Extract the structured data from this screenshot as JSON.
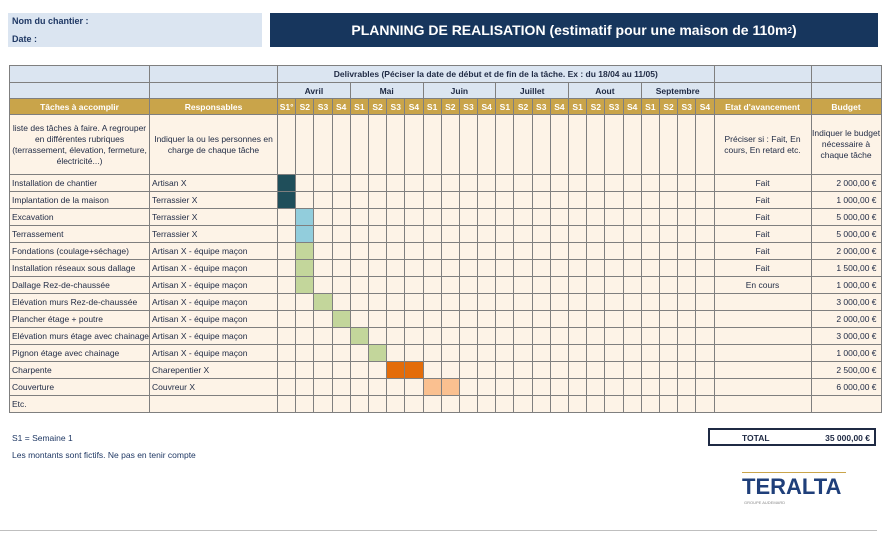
{
  "header": {
    "nom_label": "Nom du chantier :",
    "date_label": "Date :",
    "title": "PLANNING DE REALISATION (estimatif pour une maison de 110m",
    "title_sup": "2",
    "title_end": ")"
  },
  "table": {
    "delivrables": "Delivrables (Péciser la date de début et de fin de la tâche. Ex : du 18/04 au 11/05)",
    "months": [
      "Avril",
      "Mai",
      "Juin",
      "Juillet",
      "Aout",
      "Septembre"
    ],
    "weeks": [
      "S1°",
      "S2",
      "S3",
      "S4",
      "S1",
      "S2",
      "S3",
      "S4",
      "S1",
      "S2",
      "S3",
      "S4",
      "S1",
      "S2",
      "S3",
      "S4",
      "S1",
      "S2",
      "S3",
      "S4",
      "S1",
      "S2",
      "S3",
      "S4"
    ],
    "col_tasks": "Tâches à accomplir",
    "col_resp": "Responsables",
    "col_etat": "Etat d'avancement",
    "col_budget": "Budget",
    "help_tasks": "liste des tâches à faire.  A regrouper en différentes rubriques (terrassement, élevation, fermeture, électricité...)",
    "help_resp": "Indiquer la ou les personnes en charge de  chaque tâche",
    "help_etat": "Préciser si : Fait, En cours, En retard etc.",
    "help_budget": "Indiquer le budget nécessaire à chaque tâche",
    "rows": [
      {
        "task": "Installation de chantier",
        "resp": "Artisan X",
        "etat": "Fait",
        "budget": "2 000,00 €",
        "cells": [
          0
        ]
      },
      {
        "task": "Implantation de la maison",
        "resp": "Terrassier X",
        "etat": "Fait",
        "budget": "1 000,00 €",
        "cells": [
          0
        ]
      },
      {
        "task": "Excavation",
        "resp": "Terrassier X",
        "etat": "Fait",
        "budget": "5 000,00 €",
        "cells": [
          1
        ]
      },
      {
        "task": "Terrassement",
        "resp": "Terrassier X",
        "etat": "Fait",
        "budget": "5 000,00 €",
        "cells": [
          1
        ]
      },
      {
        "task": "Fondations (coulage+séchage)",
        "resp": "Artisan X - équipe maçon",
        "etat": "Fait",
        "budget": "2 000,00 €",
        "cells": [
          1
        ]
      },
      {
        "task": "Installation réseaux sous dallage",
        "resp": "Artisan X - équipe maçon",
        "etat": "Fait",
        "budget": "1 500,00 €",
        "cells": [
          1
        ]
      },
      {
        "task": "Dallage Rez-de-chaussée",
        "resp": "Artisan X - équipe maçon",
        "etat": "En cours",
        "budget": "1 000,00 €",
        "cells": [
          1
        ]
      },
      {
        "task": "Elévation murs Rez-de-chaussée",
        "resp": "Artisan X - équipe maçon",
        "etat": "",
        "budget": "3 000,00 €",
        "cells": [
          2
        ]
      },
      {
        "task": "Plancher étage + poutre",
        "resp": "Artisan X - équipe maçon",
        "etat": "",
        "budget": "2 000,00 €",
        "cells": [
          3
        ]
      },
      {
        "task": "Elévation murs étage avec chainage",
        "resp": "Artisan X - équipe maçon",
        "etat": "",
        "budget": "3 000,00 €",
        "cells": [
          4
        ]
      },
      {
        "task": "Pignon étage avec chainage",
        "resp": "Artisan X - équipe maçon",
        "etat": "",
        "budget": "1 000,00 €",
        "cells": [
          5
        ]
      },
      {
        "task": "Charpente",
        "resp": "Charepentier X",
        "etat": "",
        "budget": "2 500,00 €",
        "cells": [
          6,
          7
        ]
      },
      {
        "task": "Couverture",
        "resp": "Couvreur X",
        "etat": "",
        "budget": "6 000,00 €",
        "cells": [
          8,
          9
        ]
      },
      {
        "task": "Etc.",
        "resp": "",
        "etat": "",
        "budget": "",
        "cells": []
      }
    ],
    "row_colors": [
      "dark",
      "dark",
      "blue",
      "blue",
      "green",
      "green",
      "green",
      "green",
      "green",
      "green",
      "green",
      "orange",
      "peach",
      "none"
    ]
  },
  "notes": {
    "semaine": "S1 = Semaine 1",
    "fictifs": "Les montants sont fictifs. Ne pas en tenir compte"
  },
  "total": {
    "label": "TOTAL",
    "value": "35 000,00 €"
  },
  "logo": {
    "name": "TERALTA",
    "sub": "GROUPE AUDEMARD"
  },
  "colors": {
    "header_bg": "#17365d",
    "col_header": "#c9a44a",
    "task_bg": "#fdf3e7",
    "dark": "#1f4e5a",
    "blue": "#92cddc",
    "green": "#c3d69b",
    "orange": "#e36c0a",
    "peach": "#fac090"
  }
}
